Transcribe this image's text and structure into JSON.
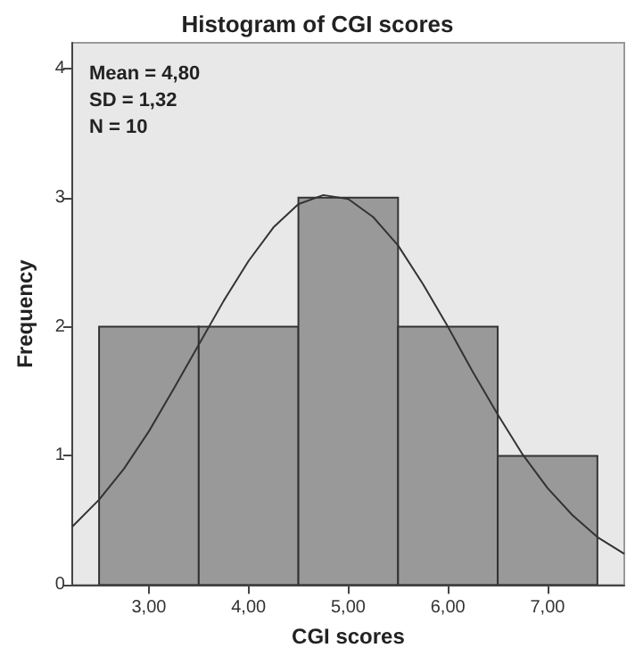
{
  "chart_data": {
    "type": "histogram",
    "title": "Histogram of CGI scores",
    "xlabel": "CGI scores",
    "ylabel": "Frequency",
    "bins": [
      2.5,
      3.5,
      4.5,
      5.5,
      6.5,
      7.5
    ],
    "values": [
      2,
      2,
      3,
      2,
      1
    ],
    "color": "#999999",
    "series": [
      {
        "type": "line",
        "color": "#333333",
        "x": [
          2.23,
          2.5,
          2.75,
          3.0,
          3.25,
          3.5,
          3.75,
          4.0,
          4.25,
          4.5,
          4.75,
          5.0,
          5.25,
          5.5,
          5.75,
          6.0,
          6.25,
          6.5,
          6.75,
          7.0,
          7.25,
          7.5,
          7.77
        ],
        "values": [
          0.45,
          0.66,
          0.9,
          1.19,
          1.52,
          1.86,
          2.2,
          2.51,
          2.77,
          2.95,
          3.02,
          2.99,
          2.85,
          2.63,
          2.33,
          2.0,
          1.65,
          1.32,
          1.01,
          0.75,
          0.54,
          0.37,
          0.24
        ]
      }
    ],
    "annotations": [
      "Mean = 4,80",
      "SD = 1,32",
      "N = 10"
    ],
    "xlim": [
      2.23,
      7.77
    ],
    "xticks": [
      {
        "value": 3,
        "label": "3,00"
      },
      {
        "value": 4,
        "label": "4,00"
      },
      {
        "value": 5,
        "label": "5,00"
      },
      {
        "value": 6,
        "label": "6,00"
      },
      {
        "value": 7,
        "label": "7,00"
      }
    ],
    "ylim": [
      0,
      4.2
    ],
    "yticks": [
      0,
      1,
      2,
      3,
      4
    ],
    "grid": false,
    "marker": "none",
    "line_style": "solid"
  }
}
